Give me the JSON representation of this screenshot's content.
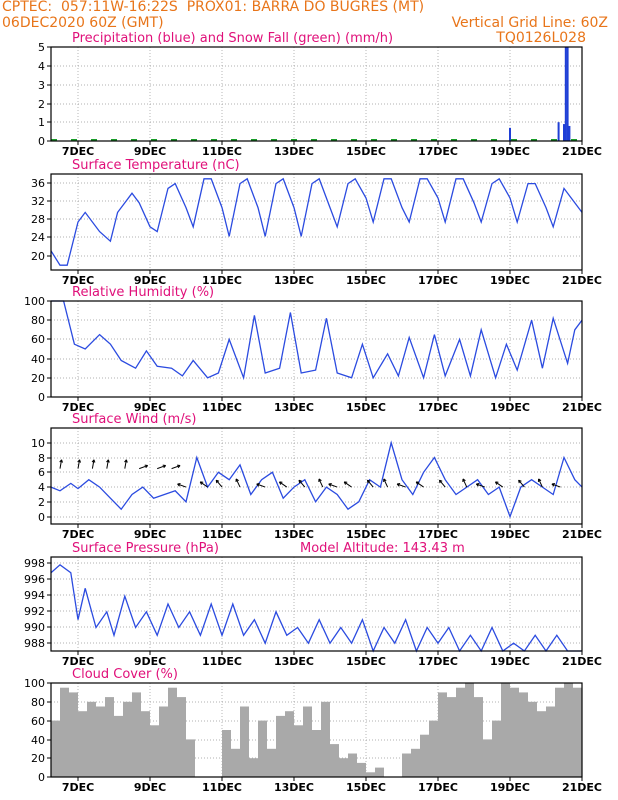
{
  "header": {
    "line1_left": "CPTEC:  057:11W-16:22S  PROX01: BARRA DO BUGRES (MT)",
    "line2_left": "06DEC2020 60Z (GMT)",
    "line2_right": "Vertical Grid Line: 60Z",
    "line3_right": "TQ0126L028"
  },
  "x_ticks": [
    "7DEC",
    "9DEC",
    "11DEC",
    "13DEC",
    "15DEC",
    "17DEC",
    "19DEC",
    "21DEC"
  ],
  "colors": {
    "header": "#e8751a",
    "title": "#e0107a",
    "precip": "#1f3fd6",
    "snow": "#1a9c2a",
    "line": "#2b4be0",
    "cloud": "#a9a9a9",
    "grid": "#999999"
  },
  "chart_data": [
    {
      "type": "bar",
      "title": "Precipitation (blue) and Snow Fall (green) (mm/h)",
      "yticks": [
        "0",
        "1",
        "2",
        "3",
        "4",
        "5"
      ],
      "ylim": [
        0,
        5
      ],
      "xlim_days": [
        6.25,
        21
      ],
      "grid": true,
      "series": [
        {
          "name": "Precipitation",
          "x_days": [
            19.0,
            20.35,
            20.5,
            20.55,
            20.6,
            20.65
          ],
          "values": [
            0.7,
            1.0,
            0.9,
            5.0,
            5.0,
            0.8
          ]
        },
        {
          "name": "Snow Fall",
          "x_days": [],
          "values": []
        }
      ]
    },
    {
      "type": "line",
      "title": "Surface Temperature (nC)",
      "yticks": [
        "20",
        "24",
        "28",
        "32",
        "36"
      ],
      "ylim": [
        18,
        38
      ],
      "xlim_days": [
        6.25,
        21
      ],
      "grid": true,
      "series": [
        {
          "name": "",
          "x_days": [
            6.25,
            6.5,
            6.7,
            7.0,
            7.2,
            7.6,
            7.9,
            8.1,
            8.5,
            8.7,
            9.0,
            9.2,
            9.5,
            9.7,
            10.0,
            10.2,
            10.5,
            10.7,
            11.0,
            11.2,
            11.5,
            11.7,
            12.0,
            12.2,
            12.5,
            12.7,
            13.0,
            13.2,
            13.5,
            13.7,
            14.0,
            14.2,
            14.5,
            14.7,
            15.0,
            15.2,
            15.5,
            15.7,
            16.0,
            16.2,
            16.5,
            16.7,
            17.0,
            17.2,
            17.5,
            17.7,
            18.0,
            18.2,
            18.5,
            18.7,
            19.0,
            19.2,
            19.5,
            19.7,
            20.0,
            20.2,
            20.5,
            20.7,
            21.0
          ],
          "values": [
            22,
            19,
            19,
            28,
            30,
            26,
            24,
            30,
            34,
            32,
            27,
            26,
            35,
            36,
            31,
            27,
            37,
            37,
            31,
            25,
            36,
            37,
            31,
            25,
            36,
            37,
            31,
            25,
            36,
            37,
            31,
            27,
            36,
            37,
            33,
            28,
            37,
            37,
            31,
            28,
            37,
            37,
            33,
            28,
            37,
            37,
            32,
            28,
            36,
            37,
            33,
            28,
            36,
            36,
            31,
            27,
            35,
            33,
            30
          ]
        }
      ]
    },
    {
      "type": "line",
      "title": "Relative Humidity (%)",
      "yticks": [
        "0",
        "20",
        "40",
        "60",
        "80",
        "100"
      ],
      "ylim": [
        0,
        100
      ],
      "xlim_days": [
        6.25,
        21
      ],
      "grid": true,
      "series": [
        {
          "name": "",
          "x_days": [
            6.25,
            6.6,
            6.9,
            7.2,
            7.6,
            7.9,
            8.2,
            8.6,
            8.9,
            9.2,
            9.6,
            9.9,
            10.2,
            10.6,
            10.9,
            11.2,
            11.6,
            11.9,
            12.2,
            12.6,
            12.9,
            13.2,
            13.6,
            13.9,
            14.2,
            14.6,
            14.9,
            15.2,
            15.6,
            15.9,
            16.2,
            16.6,
            16.9,
            17.2,
            17.6,
            17.9,
            18.2,
            18.6,
            18.9,
            19.2,
            19.6,
            19.9,
            20.2,
            20.6,
            20.8,
            21.0
          ],
          "values": [
            100,
            100,
            55,
            50,
            65,
            55,
            38,
            30,
            48,
            32,
            30,
            22,
            38,
            20,
            25,
            60,
            20,
            85,
            25,
            30,
            88,
            25,
            28,
            82,
            25,
            20,
            55,
            20,
            45,
            22,
            62,
            20,
            65,
            22,
            60,
            22,
            70,
            20,
            55,
            28,
            80,
            30,
            82,
            35,
            70,
            80
          ]
        }
      ]
    },
    {
      "type": "line",
      "title": "Surface Wind (m/s)",
      "yticks": [
        "0",
        "2",
        "4",
        "6",
        "8",
        "10"
      ],
      "ylim": [
        -1,
        12
      ],
      "xlim_days": [
        6.25,
        21
      ],
      "grid": true,
      "series": [
        {
          "name": "",
          "x_days": [
            6.25,
            6.5,
            6.8,
            7.0,
            7.3,
            7.6,
            7.9,
            8.2,
            8.5,
            8.8,
            9.1,
            9.4,
            9.7,
            10.0,
            10.3,
            10.6,
            10.9,
            11.2,
            11.5,
            11.8,
            12.1,
            12.4,
            12.7,
            13.0,
            13.3,
            13.6,
            13.9,
            14.2,
            14.5,
            14.8,
            15.1,
            15.4,
            15.7,
            16.0,
            16.3,
            16.6,
            16.9,
            17.2,
            17.5,
            17.8,
            18.1,
            18.4,
            18.7,
            19.0,
            19.3,
            19.6,
            19.9,
            20.2,
            20.5,
            20.8,
            21.0
          ],
          "values": [
            4,
            3.5,
            4.5,
            3.8,
            5,
            4,
            2.5,
            1,
            3,
            4,
            2.5,
            3,
            3.5,
            2,
            8,
            4,
            6,
            5,
            7,
            3,
            5,
            6,
            2.5,
            4,
            5,
            2,
            4,
            3,
            1,
            2,
            5,
            4,
            10,
            5,
            3,
            6,
            8,
            5,
            3,
            4,
            5,
            3,
            4,
            0,
            4,
            5,
            4,
            3,
            8,
            5,
            4
          ]
        }
      ]
    },
    {
      "type": "line",
      "title": "Surface Pressure (hPa)",
      "subtitle": "Model Altitude: 143.43 m",
      "yticks": [
        "988",
        "990",
        "992",
        "994",
        "996",
        "998"
      ],
      "ylim": [
        987,
        999
      ],
      "xlim_days": [
        6.25,
        21
      ],
      "grid": true,
      "series": [
        {
          "name": "",
          "x_days": [
            6.25,
            6.5,
            6.8,
            7.0,
            7.2,
            7.5,
            7.8,
            8.0,
            8.3,
            8.6,
            8.9,
            9.2,
            9.5,
            9.8,
            10.1,
            10.4,
            10.7,
            11.0,
            11.3,
            11.6,
            11.9,
            12.2,
            12.5,
            12.8,
            13.1,
            13.4,
            13.7,
            14.0,
            14.3,
            14.6,
            14.9,
            15.2,
            15.5,
            15.8,
            16.1,
            16.4,
            16.7,
            17.0,
            17.3,
            17.6,
            17.9,
            18.2,
            18.5,
            18.8,
            19.1,
            19.4,
            19.7,
            20.0,
            20.3,
            20.6,
            21.0
          ],
          "values": [
            997,
            998,
            997,
            991,
            995,
            990,
            992,
            989,
            994,
            990,
            992,
            989,
            993,
            990,
            992,
            989,
            993,
            989,
            993,
            989,
            991,
            988,
            992,
            989,
            990,
            988,
            991,
            988,
            990,
            988,
            991,
            987,
            990,
            988,
            991,
            987,
            990,
            988,
            990,
            987,
            989,
            987,
            990,
            987,
            988,
            987,
            989,
            987,
            989,
            987,
            987
          ]
        }
      ]
    },
    {
      "type": "bar",
      "title": "Cloud Cover (%)",
      "yticks": [
        "0",
        "20",
        "40",
        "60",
        "80",
        "100"
      ],
      "ylim": [
        0,
        100
      ],
      "xlim_days": [
        6.25,
        21
      ],
      "grid": true,
      "series": [
        {
          "name": "",
          "x_days": [
            6.25,
            6.5,
            6.75,
            7.0,
            7.25,
            7.5,
            7.75,
            8.0,
            8.25,
            8.5,
            8.75,
            9.0,
            9.25,
            9.5,
            9.75,
            10.0,
            10.25,
            10.5,
            10.75,
            11.0,
            11.25,
            11.5,
            11.75,
            12.0,
            12.25,
            12.5,
            12.75,
            13.0,
            13.25,
            13.5,
            13.75,
            14.0,
            14.25,
            14.5,
            14.75,
            15.0,
            15.25,
            15.5,
            15.75,
            16.0,
            16.25,
            16.5,
            16.75,
            17.0,
            17.25,
            17.5,
            17.75,
            18.0,
            18.25,
            18.5,
            18.75,
            19.0,
            19.25,
            19.5,
            19.75,
            20.0,
            20.25,
            20.5,
            20.75
          ],
          "values": [
            60,
            95,
            90,
            70,
            80,
            75,
            85,
            65,
            80,
            90,
            70,
            55,
            75,
            95,
            85,
            40,
            0,
            0,
            0,
            50,
            30,
            75,
            20,
            60,
            30,
            65,
            70,
            55,
            75,
            50,
            80,
            35,
            20,
            25,
            15,
            5,
            10,
            0,
            0,
            25,
            30,
            45,
            60,
            90,
            85,
            95,
            100,
            85,
            40,
            60,
            100,
            95,
            90,
            80,
            70,
            75,
            95,
            100,
            95
          ]
        }
      ]
    }
  ]
}
